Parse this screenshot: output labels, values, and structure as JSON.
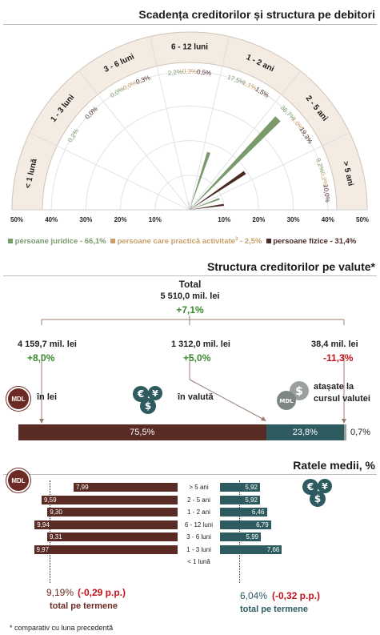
{
  "section1": {
    "title": "Scadența creditorilor și structura pe debitori",
    "sectors": [
      "< 1 lună",
      "1 - 3 luni",
      "3 - 6 luni",
      "6 - 12 luni",
      "1 - 2 ani",
      "2 - 5 ani",
      "> 5 ani"
    ],
    "axis_ticks": [
      "50%",
      "40%",
      "30%",
      "20%",
      "10%",
      "10%",
      "20%",
      "30%",
      "40%",
      "50%"
    ],
    "legend": {
      "juridice": "persoane juridice - 66,1%",
      "activitate_a": "persoane care practică activitate",
      "activitate_sup": "3",
      "activitate_b": " - 2,5%",
      "fizice": "persoane fizice - 31,4%"
    },
    "colors": {
      "juridice": "#7a9a6c",
      "activitate": "#c8a06a",
      "fizice": "#4a2a24"
    }
  },
  "chart_data": [
    {
      "type": "polar_bar",
      "title": "Scadența creditorilor și structura pe debitori",
      "categories": [
        "< 1 lună",
        "1 - 3 luni",
        "3 - 6 luni",
        "6 - 12 luni",
        "1 - 2 ani",
        "2 - 5 ani",
        "> 5 ani"
      ],
      "axis_range": [
        0,
        50
      ],
      "series": [
        {
          "name": "persoane juridice - 66,1%",
          "color": "#7a9a6c",
          "values": [
            null,
            0.2,
            0.0,
            2.2,
            17.5,
            36.7,
            9.2
          ],
          "labels": [
            "",
            "0,2%",
            "0,0%",
            "2,2%",
            "17,5%",
            "36,7%",
            "9,2%"
          ]
        },
        {
          "name": "persoane care practică activitate - 2,5%",
          "color": "#c8a06a",
          "values": [
            null,
            null,
            0.0,
            0.3,
            1.1,
            1.0,
            0.2
          ],
          "labels": [
            "",
            "",
            "0,0%",
            "0,3%",
            "1,1%",
            "1,0%",
            "0,2%"
          ]
        },
        {
          "name": "persoane fizice - 31,4%",
          "color": "#4a2a24",
          "values": [
            null,
            0.0,
            0.3,
            0.5,
            1.5,
            19.3,
            10.0
          ],
          "labels": [
            "",
            "0,0%",
            "0,3%",
            "0,5%",
            "1,5%",
            "19,3%",
            "10,0%"
          ]
        }
      ]
    },
    {
      "type": "bar",
      "title": "Structura creditorilor pe valute*",
      "categories": [
        "în lei",
        "în valută",
        "atașate la cursul valutei"
      ],
      "values": [
        75.5,
        23.8,
        0.7
      ],
      "labels": [
        "75,5%",
        "23,8%",
        "0,7%"
      ]
    },
    {
      "type": "bar",
      "title": "Ratele medii, %",
      "categories": [
        "> 5 ani",
        "2 - 5 ani",
        "1 - 2 ani",
        "6 - 12 luni",
        "3 - 6 luni",
        "1 - 3 luni",
        "< 1 lună"
      ],
      "series": [
        {
          "name": "MDL",
          "values": [
            7.99,
            9.59,
            9.3,
            9.94,
            9.31,
            9.97,
            null
          ]
        },
        {
          "name": "valută",
          "values": [
            5.92,
            5.92,
            6.46,
            6.79,
            5.99,
            7.66,
            null
          ]
        }
      ]
    }
  ],
  "section2": {
    "title": "Structura creditorilor pe valute*",
    "total_label": "Total",
    "total_value": "5 510,0 mil. lei",
    "total_change": "+7,1%",
    "lei_value": "4 159,7 mil. lei",
    "lei_change": "+8,0%",
    "valuta_value": "1 312,0 mil. lei",
    "valuta_change": "+5,0%",
    "atasate_value": "38,4 mil. lei",
    "atasate_change": "-11,3%",
    "mdl_badge": "MDL",
    "lei_label": "în lei",
    "valuta_label": "în valută",
    "atasate_label_1": "atașate la",
    "atasate_label_2": "cursul valutei",
    "bar_labels": [
      "75,5%",
      "23,8%",
      "0,7%"
    ],
    "colors": {
      "lei": "#5a2a24",
      "valuta": "#2d5b60",
      "atasate": "#9aa0a0"
    }
  },
  "section3": {
    "title": "Ratele medii, %",
    "mdl_badge": "MDL",
    "mdl_labels": [
      "7,99",
      "9,59",
      "9,30",
      "9,94",
      "9,31",
      "9,97"
    ],
    "fx_labels": [
      "5,92",
      "5,92",
      "6,46",
      "6,79",
      "5,99",
      "7,66"
    ],
    "terms": [
      "> 5 ani",
      "2 - 5 ani",
      "1 - 2 ani",
      "6 - 12 luni",
      "3 - 6 luni",
      "1 - 3 luni",
      "< 1 lună"
    ],
    "mdl_total": "9,19%",
    "mdl_change": "(-0,29 p.p.)",
    "mdl_total_label": "total pe termene",
    "fx_total": "6,04%",
    "fx_change": "(-0,32 p.p.)",
    "fx_total_label": "total pe termene"
  },
  "footnote": "* comparativ cu luna precedentă"
}
